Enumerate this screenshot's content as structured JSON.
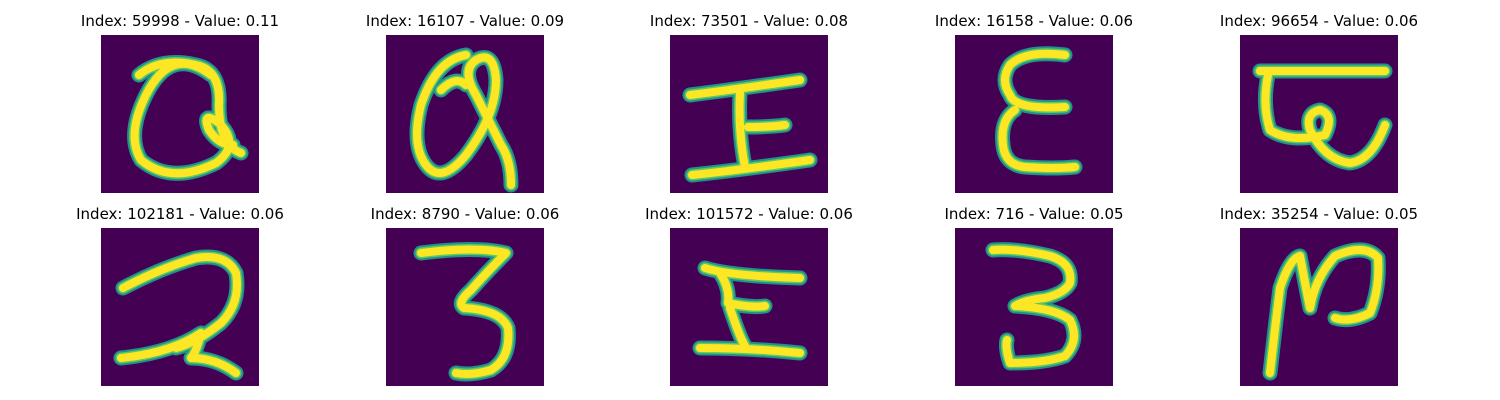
{
  "panels": [
    {
      "index": "59998",
      "value": "0.11",
      "title": "Index: 59998 - Value: 0.11",
      "glyph": "a-loop"
    },
    {
      "index": "16107",
      "value": "0.09",
      "title": "Index: 16107 - Value: 0.09",
      "glyph": "a-loop-tall"
    },
    {
      "index": "73501",
      "value": "0.08",
      "title": "Index: 73501 - Value: 0.08",
      "glyph": "i-beam"
    },
    {
      "index": "16158",
      "value": "0.06",
      "title": "Index: 16158 - Value: 0.06",
      "glyph": "e-shape"
    },
    {
      "index": "96654",
      "value": "0.06",
      "title": "Index: 96654 - Value: 0.06",
      "glyph": "bar-curl"
    },
    {
      "index": "102181",
      "value": "0.06",
      "title": "Index: 102181 - Value: 0.06",
      "glyph": "two-shape"
    },
    {
      "index": "8790",
      "value": "0.06",
      "title": "Index: 8790 - Value: 0.06",
      "glyph": "three-shape"
    },
    {
      "index": "101572",
      "value": "0.06",
      "title": "Index: 101572 - Value: 0.06",
      "glyph": "z-beam"
    },
    {
      "index": "716",
      "value": "0.05",
      "title": "Index: 716 - Value: 0.05",
      "glyph": "three-flat"
    },
    {
      "index": "35254",
      "value": "0.05",
      "title": "Index: 35254 - Value: 0.05",
      "glyph": "n-shape"
    }
  ],
  "colors": {
    "background": "#440154",
    "edge": "#21918c",
    "mid": "#5ec962",
    "core": "#fde725"
  }
}
